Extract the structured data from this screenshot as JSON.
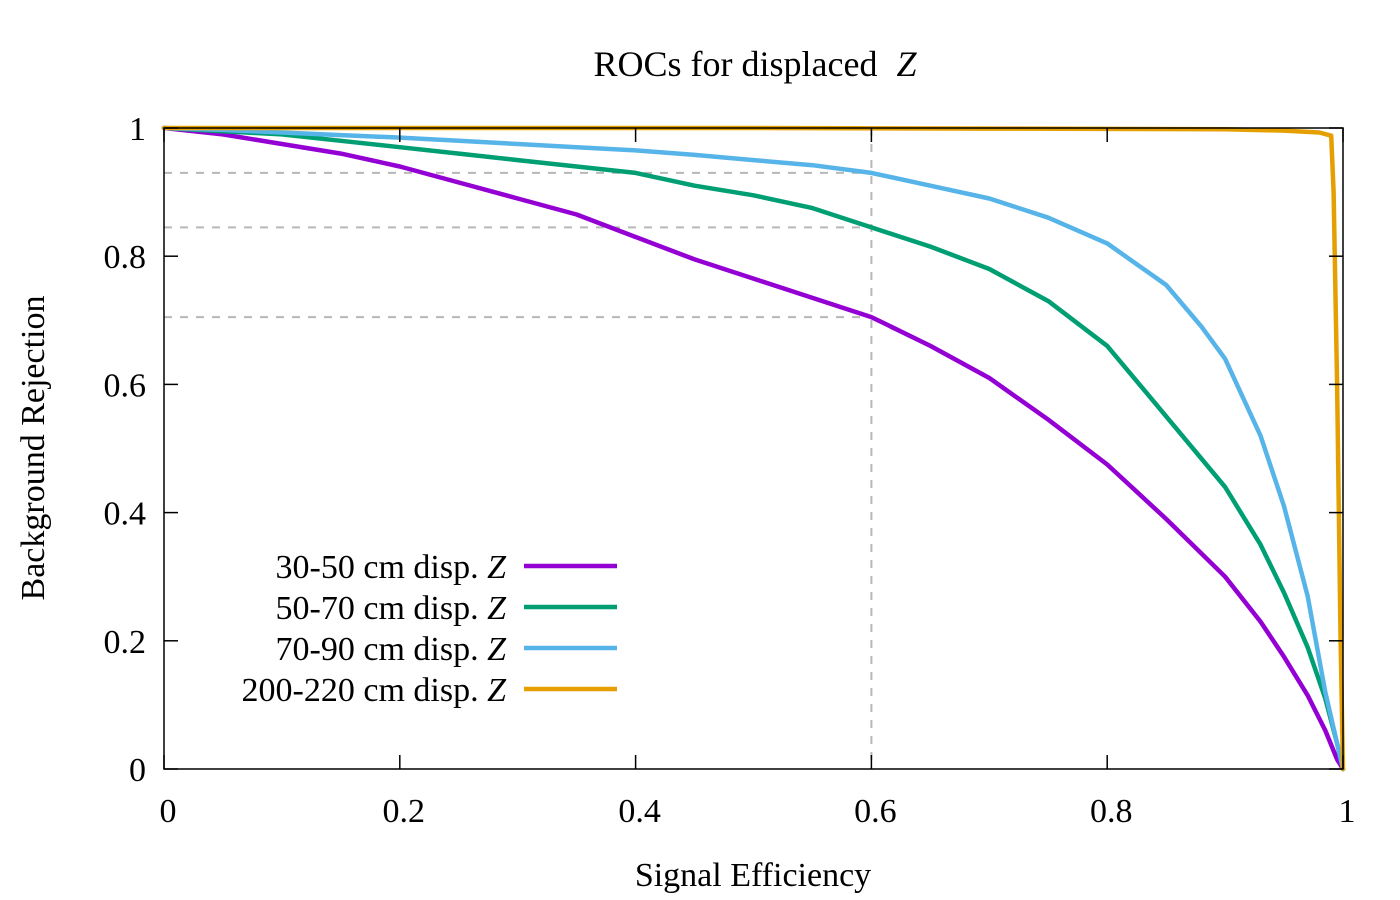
{
  "chart_data": {
    "type": "line",
    "title": "ROCs for displaced",
    "title_var": "Z",
    "xlabel": "Signal Efficiency",
    "ylabel": "Background Rejection",
    "xlim": [
      0,
      1
    ],
    "ylim": [
      0,
      1
    ],
    "x_ticks": [
      "0",
      "0.2",
      "0.4",
      "0.6",
      "0.8",
      "1"
    ],
    "y_ticks": [
      "0",
      "0.2",
      "0.4",
      "0.6",
      "0.8",
      "1"
    ],
    "legend_position": "bottom-left",
    "reference_lines": {
      "vertical_x": 0.6,
      "horizontal_y": [
        0.93,
        0.845,
        0.705
      ]
    },
    "series": [
      {
        "name": "30-50 cm disp.",
        "name_var": "Z",
        "color": "#9400d3",
        "x": [
          0,
          0.05,
          0.1,
          0.15,
          0.2,
          0.25,
          0.3,
          0.35,
          0.4,
          0.45,
          0.5,
          0.55,
          0.6,
          0.65,
          0.7,
          0.75,
          0.8,
          0.85,
          0.9,
          0.93,
          0.95,
          0.97,
          0.985,
          0.995,
          1.0
        ],
        "y": [
          1.0,
          0.99,
          0.975,
          0.96,
          0.94,
          0.915,
          0.89,
          0.865,
          0.83,
          0.795,
          0.765,
          0.735,
          0.705,
          0.66,
          0.61,
          0.545,
          0.475,
          0.39,
          0.3,
          0.23,
          0.175,
          0.115,
          0.06,
          0.015,
          0.0
        ]
      },
      {
        "name": "50-70 cm disp.",
        "name_var": "Z",
        "color": "#009e73",
        "x": [
          0,
          0.05,
          0.1,
          0.15,
          0.2,
          0.25,
          0.3,
          0.35,
          0.4,
          0.45,
          0.5,
          0.55,
          0.6,
          0.65,
          0.7,
          0.75,
          0.8,
          0.85,
          0.9,
          0.93,
          0.95,
          0.97,
          0.985,
          0.995,
          1.0
        ],
        "y": [
          1.0,
          0.995,
          0.99,
          0.98,
          0.97,
          0.96,
          0.95,
          0.94,
          0.93,
          0.91,
          0.895,
          0.875,
          0.845,
          0.815,
          0.78,
          0.73,
          0.66,
          0.55,
          0.44,
          0.35,
          0.275,
          0.19,
          0.11,
          0.04,
          0.0
        ]
      },
      {
        "name": "70-90 cm disp.",
        "name_var": "Z",
        "color": "#56b4e9",
        "x": [
          0,
          0.05,
          0.1,
          0.15,
          0.2,
          0.25,
          0.3,
          0.35,
          0.4,
          0.45,
          0.5,
          0.55,
          0.6,
          0.65,
          0.7,
          0.75,
          0.8,
          0.85,
          0.88,
          0.9,
          0.93,
          0.95,
          0.97,
          0.985,
          1.0
        ],
        "y": [
          1.0,
          0.997,
          0.993,
          0.989,
          0.985,
          0.98,
          0.975,
          0.97,
          0.965,
          0.958,
          0.95,
          0.942,
          0.93,
          0.91,
          0.89,
          0.86,
          0.82,
          0.755,
          0.69,
          0.64,
          0.52,
          0.41,
          0.27,
          0.12,
          0.0
        ]
      },
      {
        "name": "200-220 cm disp.",
        "name_var": "Z",
        "color": "#e69f00",
        "x": [
          0,
          0.1,
          0.3,
          0.5,
          0.7,
          0.9,
          0.95,
          0.98,
          0.99,
          0.992,
          0.995,
          0.998,
          1.0
        ],
        "y": [
          1.0,
          1.0,
          1.0,
          1.0,
          0.999,
          0.998,
          0.996,
          0.993,
          0.988,
          0.9,
          0.6,
          0.2,
          0.0
        ]
      }
    ]
  }
}
